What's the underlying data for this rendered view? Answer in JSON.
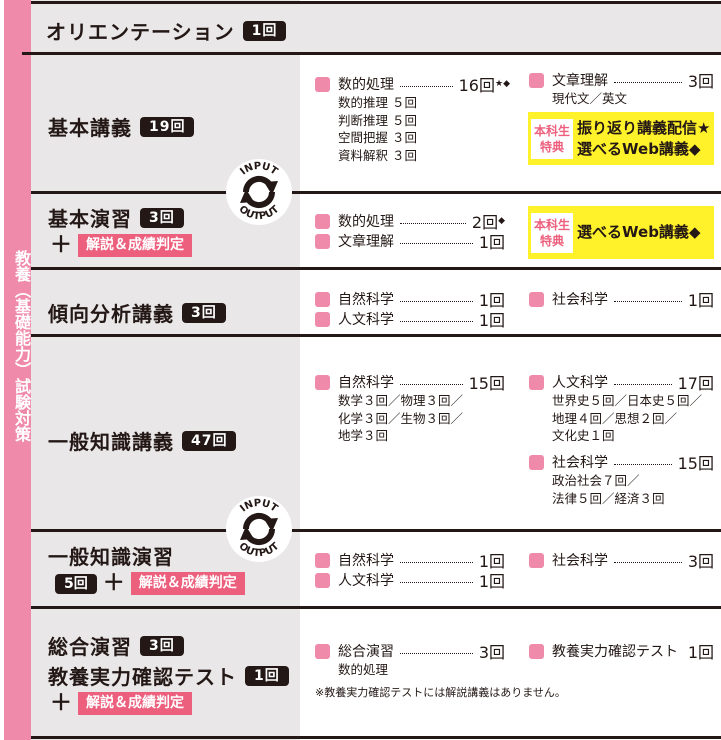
{
  "sidebar": {
    "label": "教養（基礎能力）試験対策"
  },
  "colors": {
    "accent_pink": "#f08aab",
    "button_pink": "#ec5f7d",
    "bonus_yellow": "#fff22a",
    "row_grey": "#e9e7e8"
  },
  "addon_label": "解説＆成績判定",
  "plus": "＋",
  "cycle_icon": {
    "top": "INPUT",
    "bottom": "OUTPUT"
  },
  "rows": {
    "orientation": {
      "title": "オリエンテーション",
      "badge": "1回"
    },
    "kihon_kogi": {
      "title": "基本講義",
      "badge": "19回",
      "left": {
        "label": "数的処理",
        "count": "16回",
        "mark": "★◆",
        "subs": [
          "数的推理 ５回",
          "判断推理 ５回",
          "空間把握 ３回",
          "資料解釈 ３回"
        ]
      },
      "right": {
        "label": "文章理解",
        "count": "3回",
        "sub": "現代文／英文"
      },
      "bonus": {
        "label1": "本科生",
        "label2": "特典",
        "line1": "振り返り講義配信★",
        "line2": "選べるWeb講義◆"
      }
    },
    "kihon_enshu": {
      "title": "基本演習",
      "badge": "3回",
      "items": [
        {
          "label": "数的処理",
          "count": "2回",
          "mark": "◆"
        },
        {
          "label": "文章理解",
          "count": "1回"
        }
      ],
      "bonus": {
        "label1": "本科生",
        "label2": "特典",
        "line1": "選べるWeb講義◆"
      }
    },
    "keiko": {
      "title": "傾向分析講義",
      "badge": "3回",
      "items": [
        {
          "label": "自然科学",
          "count": "1回"
        },
        {
          "label": "人文科学",
          "count": "1回"
        }
      ],
      "right": {
        "label": "社会科学",
        "count": "1回"
      }
    },
    "ippan_kogi": {
      "title": "一般知識講義",
      "badge": "47回",
      "left": {
        "label": "自然科学",
        "count": "15回",
        "subs": [
          "数学３回／物理３回／",
          "化学３回／生物３回／",
          "地学３回"
        ]
      },
      "right1": {
        "label": "人文科学",
        "count": "17回",
        "subs": [
          "世界史５回／日本史５回／",
          "地理４回／思想２回／",
          "文化史１回"
        ]
      },
      "right2": {
        "label": "社会科学",
        "count": "15回",
        "subs": [
          "政治社会７回／",
          "法律５回／経済３回"
        ]
      }
    },
    "ippan_enshu": {
      "title": "一般知識演習",
      "badge": "5回",
      "items": [
        {
          "label": "自然科学",
          "count": "1回"
        },
        {
          "label": "人文科学",
          "count": "1回"
        }
      ],
      "right": {
        "label": "社会科学",
        "count": "3回"
      }
    },
    "sogo": {
      "title1": "総合演習",
      "badge1": "3回",
      "title2": "教養実力確認テスト",
      "badge2": "1回",
      "left": {
        "label": "総合演習",
        "count": "3回",
        "sub": "数的処理"
      },
      "right": {
        "label": "教養実力確認テスト",
        "count": "1回"
      },
      "note": "※教養実力確認テストには解説講義はありません。"
    }
  }
}
